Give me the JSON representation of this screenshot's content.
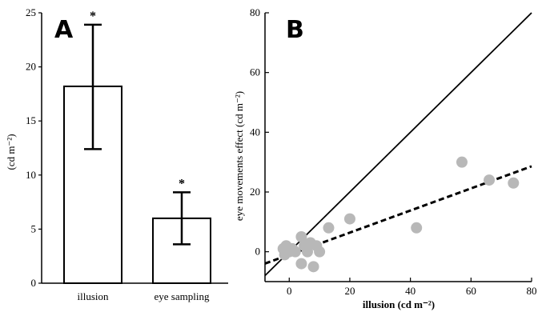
{
  "chart_data": [
    {
      "type": "bar",
      "panel": "A",
      "categories": [
        "illusion",
        "eye sampling"
      ],
      "values": [
        18.2,
        6.0
      ],
      "error_low": [
        12.4,
        3.6
      ],
      "error_high": [
        23.9,
        8.4
      ],
      "significance": [
        "*",
        "*"
      ],
      "ylabel": "(cd m⁻²)",
      "ylim": [
        0,
        25
      ],
      "yticks": [
        "0",
        "5",
        "10",
        "15",
        "20",
        "25"
      ],
      "colors": {
        "bar_fill": "#ffffff",
        "bar_stroke": "#000000"
      }
    },
    {
      "type": "scatter",
      "panel": "B",
      "xlabel": "illusion (cd m⁻²)",
      "ylabel": "eye movements effect (cd m⁻²)",
      "xlim": [
        -8,
        80
      ],
      "ylim": [
        -10,
        80
      ],
      "xticks": [
        "0",
        "20",
        "40",
        "60",
        "80"
      ],
      "yticks": [
        "0",
        "20",
        "40",
        "60",
        "80"
      ],
      "points": [
        {
          "x": -1,
          "y": 2
        },
        {
          "x": -2,
          "y": 1
        },
        {
          "x": -1.5,
          "y": -1
        },
        {
          "x": 0,
          "y": 0
        },
        {
          "x": 1,
          "y": 1
        },
        {
          "x": 2,
          "y": 0
        },
        {
          "x": 4,
          "y": 5
        },
        {
          "x": 5,
          "y": 2
        },
        {
          "x": 4,
          "y": -4
        },
        {
          "x": 6,
          "y": 0
        },
        {
          "x": 7,
          "y": 3
        },
        {
          "x": 8,
          "y": -5
        },
        {
          "x": 9,
          "y": 2
        },
        {
          "x": 10,
          "y": 0
        },
        {
          "x": 13,
          "y": 8
        },
        {
          "x": 20,
          "y": 11
        },
        {
          "x": 42,
          "y": 8
        },
        {
          "x": 57,
          "y": 30
        },
        {
          "x": 66,
          "y": 24
        },
        {
          "x": 74,
          "y": 23
        }
      ],
      "identity_line": true,
      "regression": {
        "slope": 0.37,
        "intercept": -1.0
      },
      "colors": {
        "points": "#b8b8b8",
        "lines": "#000000"
      }
    }
  ],
  "labels": {
    "panelA": "A",
    "panelB": "B"
  }
}
